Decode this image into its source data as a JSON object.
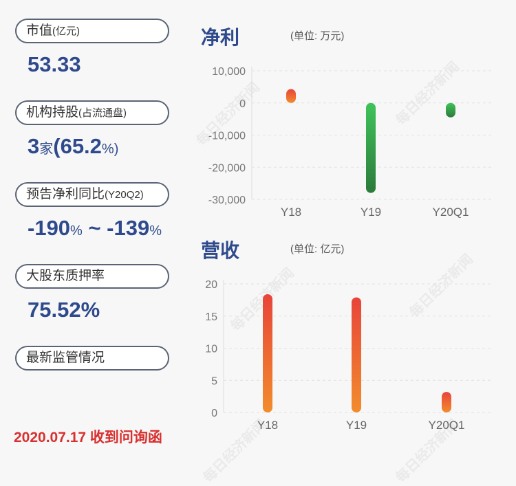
{
  "left_panel": {
    "items": [
      {
        "label": "市值",
        "label_small": "(亿元)",
        "value_parts": [
          [
            "53.33",
            false
          ]
        ]
      },
      {
        "label": "机构持股",
        "label_small": "(占流通盘)",
        "value_parts": [
          [
            "3",
            false
          ],
          [
            "家",
            true
          ],
          [
            "(65.2",
            false
          ],
          [
            "%)",
            true
          ]
        ]
      },
      {
        "label": "预告净利同比",
        "label_small": "(Y20Q2)",
        "value_parts": [
          [
            "-190",
            false
          ],
          [
            "%",
            true
          ],
          [
            " ~ -139",
            false
          ],
          [
            "%",
            true
          ]
        ]
      },
      {
        "label": "大股东质押率",
        "label_small": "",
        "value_parts": [
          [
            "75.52%",
            false
          ]
        ]
      },
      {
        "label": "最新监管情况",
        "label_small": "",
        "value_parts": []
      }
    ],
    "date_text": "2020.07.17 收到问询函"
  },
  "watermark_text": "每日经济新闻",
  "colors": {
    "accent": "#2f4a8c",
    "date": "#d8302f",
    "pos_top": "#e8443a",
    "pos_bottom": "#f28c2c",
    "neg_top": "#3fc35a",
    "neg_bottom": "#2c7a3c"
  },
  "chart_data": [
    {
      "type": "bar",
      "title": "净利",
      "unit": "(单位: 万元)",
      "categories": [
        "Y18",
        "Y19",
        "Y20Q1"
      ],
      "values": [
        4300,
        -28000,
        -4500
      ],
      "ylim": [
        -30000,
        10000
      ],
      "yticks": [
        10000,
        0,
        -10000,
        -20000,
        -30000
      ],
      "ytick_labels": [
        "10,000",
        "0",
        "-10,000",
        "-20,000",
        "-30,000"
      ],
      "grid": true
    },
    {
      "type": "bar",
      "title": "营收",
      "unit": "(单位: 亿元)",
      "categories": [
        "Y18",
        "Y19",
        "Y20Q1"
      ],
      "values": [
        18.4,
        17.9,
        3.2
      ],
      "ylim": [
        0,
        20
      ],
      "yticks": [
        20,
        15,
        10,
        5,
        0
      ],
      "ytick_labels": [
        "20",
        "15",
        "10",
        "5",
        "0"
      ],
      "grid": true
    }
  ]
}
